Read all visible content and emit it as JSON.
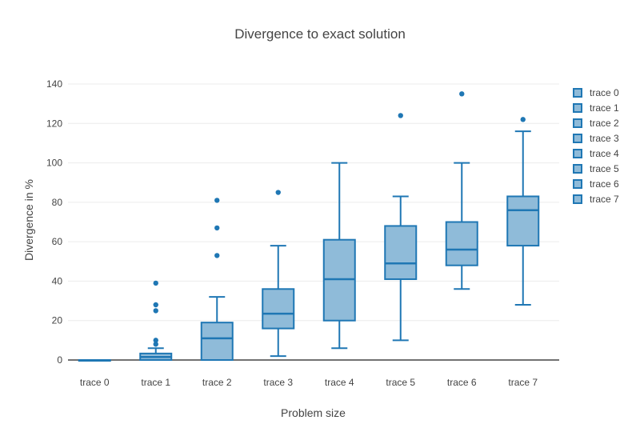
{
  "chart_data": {
    "type": "box",
    "title": "Divergence to exact solution",
    "xlabel": "Problem size",
    "ylabel": "Divergence in %",
    "ylim": [
      0,
      140
    ],
    "ytick_step": 20,
    "ytick_labels": [
      "0",
      "20",
      "40",
      "60",
      "80",
      "100",
      "120",
      "140"
    ],
    "grid": true,
    "legend_position": "right",
    "categories": [
      "trace 0",
      "trace 1",
      "trace 2",
      "trace 3",
      "trace 4",
      "trace 5",
      "trace 6",
      "trace 7"
    ],
    "series": [
      {
        "name": "trace 0",
        "low": 0,
        "q1": 0,
        "median": 0,
        "q3": 0,
        "high": 0,
        "outliers": []
      },
      {
        "name": "trace 1",
        "low": 0,
        "q1": 0,
        "median": 1.5,
        "q3": 3.3,
        "high": 6,
        "outliers": [
          8,
          10,
          25,
          28,
          39
        ]
      },
      {
        "name": "trace 2",
        "low": 0,
        "q1": 0,
        "median": 11,
        "q3": 19,
        "high": 32,
        "outliers": [
          53,
          67,
          81
        ]
      },
      {
        "name": "trace 3",
        "low": 2,
        "q1": 16,
        "median": 23.5,
        "q3": 36,
        "high": 58,
        "outliers": [
          85
        ]
      },
      {
        "name": "trace 4",
        "low": 6,
        "q1": 20,
        "median": 41,
        "q3": 61,
        "high": 100,
        "outliers": []
      },
      {
        "name": "trace 5",
        "low": 10,
        "q1": 41,
        "median": 49,
        "q3": 68,
        "high": 83,
        "outliers": [
          124
        ]
      },
      {
        "name": "trace 6",
        "low": 36,
        "q1": 48,
        "median": 56,
        "q3": 70,
        "high": 100,
        "outliers": [
          135
        ]
      },
      {
        "name": "trace 7",
        "low": 28,
        "q1": 58,
        "median": 76,
        "q3": 83,
        "high": 116,
        "outliers": [
          122
        ]
      }
    ],
    "colors": {
      "box_line": "#1f77b4",
      "box_fill": "#8fbbd9",
      "outlier": "#1f77b4",
      "grid": "#ececec",
      "zeroline": "#444444",
      "text": "#444444"
    }
  }
}
